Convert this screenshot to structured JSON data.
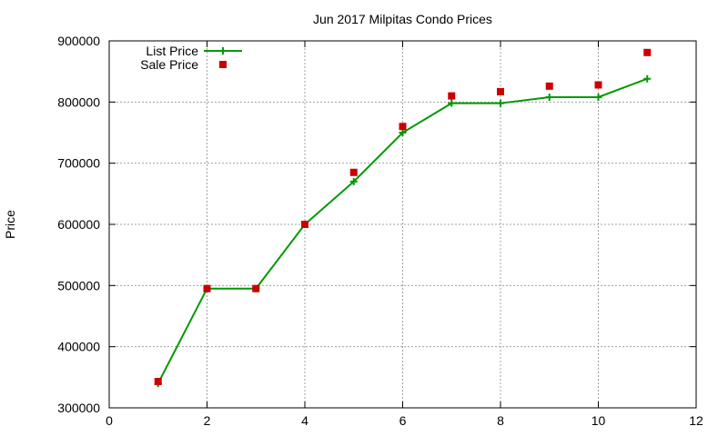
{
  "chart_data": {
    "type": "line",
    "title": "Jun 2017 Milpitas Condo Prices",
    "xlabel": "",
    "ylabel": "Price",
    "xlim": [
      0,
      12
    ],
    "ylim": [
      300000,
      900000
    ],
    "xticks": [
      0,
      2,
      4,
      6,
      8,
      10,
      12
    ],
    "yticks": [
      300000,
      400000,
      500000,
      600000,
      700000,
      800000,
      900000
    ],
    "grid": true,
    "legend_position": "top-left",
    "series": [
      {
        "name": "List Price",
        "style": "line-with-plus-markers",
        "color": "#009900",
        "x": [
          1,
          2,
          3,
          4,
          5,
          6,
          7,
          8,
          9,
          10,
          11
        ],
        "y": [
          340000,
          495000,
          495000,
          600000,
          670000,
          750000,
          798000,
          798000,
          808000,
          808000,
          838000
        ]
      },
      {
        "name": "Sale Price",
        "style": "square-markers",
        "color": "#cc0000",
        "x": [
          1,
          2,
          3,
          4,
          5,
          6,
          7,
          8,
          9,
          10,
          11
        ],
        "y": [
          343000,
          495000,
          495000,
          600000,
          685000,
          760000,
          810000,
          817000,
          826000,
          828000,
          881000
        ]
      }
    ]
  }
}
